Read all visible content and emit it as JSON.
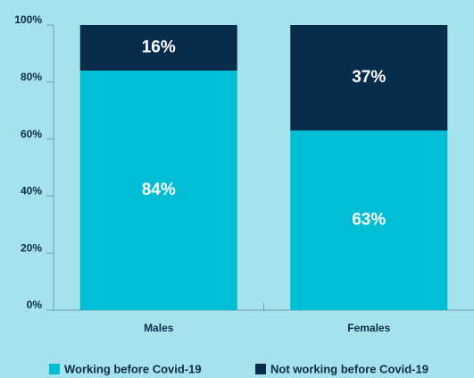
{
  "chart_data": {
    "type": "stacked_bar",
    "categories": [
      "Males",
      "Females"
    ],
    "series": [
      {
        "name": "Working before Covid-19",
        "color": "#00bdd6",
        "values": [
          84,
          63
        ],
        "value_labels": [
          "84%",
          "63%"
        ]
      },
      {
        "name": "Not working before Covid-19",
        "color": "#082c4c",
        "values": [
          16,
          37
        ],
        "value_labels": [
          "16%",
          "37%"
        ]
      }
    ],
    "ylim": [
      0,
      100
    ],
    "yticks": [
      {
        "value": 0,
        "label": "0%"
      },
      {
        "value": 20,
        "label": "20%"
      },
      {
        "value": 40,
        "label": "40%"
      },
      {
        "value": 60,
        "label": "60%"
      },
      {
        "value": 80,
        "label": "80%"
      },
      {
        "value": 100,
        "label": "100%"
      }
    ],
    "legend": "bottom"
  }
}
